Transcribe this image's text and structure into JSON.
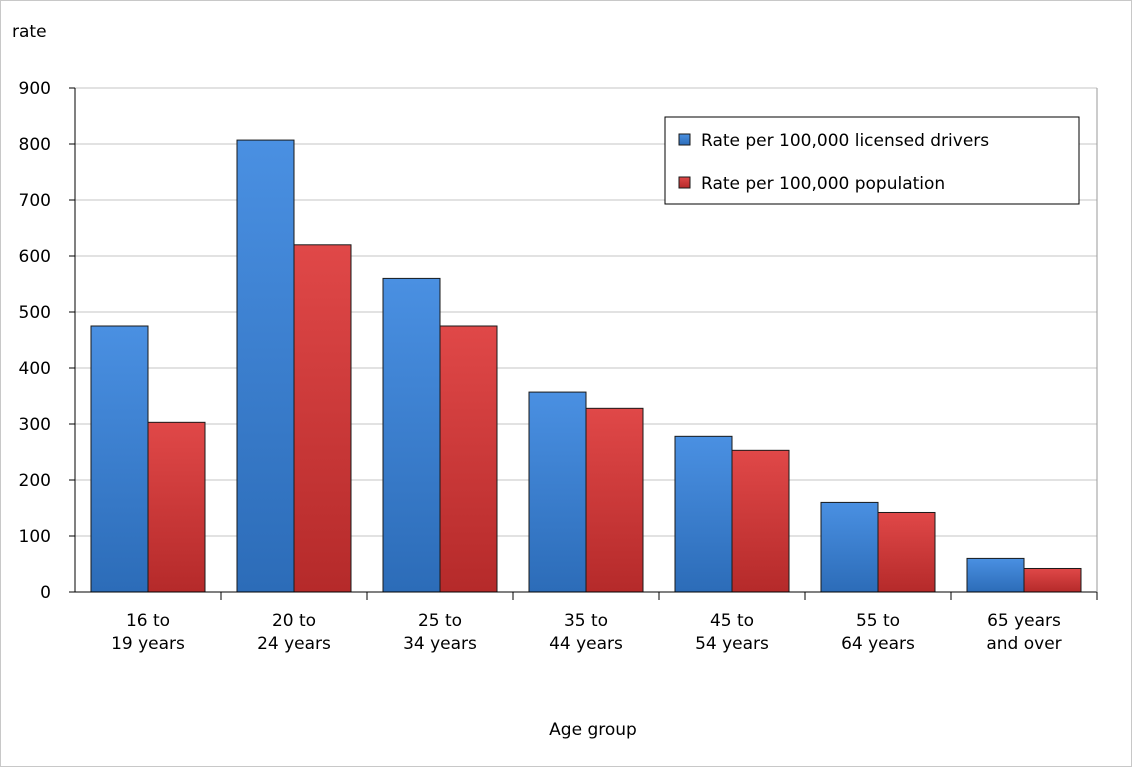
{
  "chart_data": {
    "type": "bar",
    "title": "",
    "xlabel": "Age group",
    "ylabel": "rate",
    "ylim": [
      0,
      900
    ],
    "yticks": [
      0,
      100,
      200,
      300,
      400,
      500,
      600,
      700,
      800,
      900
    ],
    "grid": true,
    "legend_position": "top-right",
    "categories": [
      [
        "16 to",
        "19 years"
      ],
      [
        "20 to",
        "24 years"
      ],
      [
        "25 to",
        "34 years"
      ],
      [
        "35 to",
        "44 years"
      ],
      [
        "45 to",
        "54 years"
      ],
      [
        "55 to",
        "64 years"
      ],
      [
        "65 years",
        "and over"
      ]
    ],
    "series": [
      {
        "name": "Rate per 100,000 licensed drivers",
        "color": "#3a7fd5",
        "values": [
          475,
          807,
          560,
          357,
          278,
          160,
          60
        ]
      },
      {
        "name": "Rate per 100,000 population",
        "color": "#cc3434",
        "values": [
          303,
          620,
          475,
          328,
          253,
          142,
          42
        ]
      }
    ]
  }
}
